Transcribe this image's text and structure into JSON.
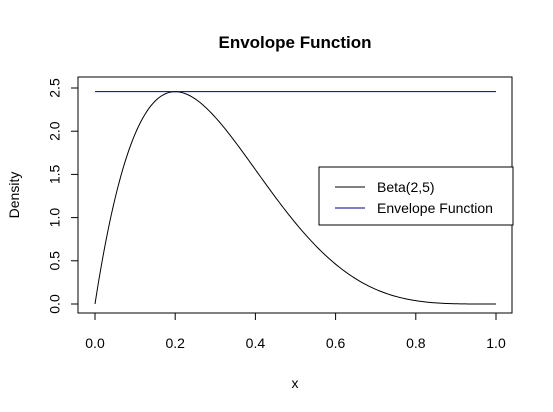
{
  "chart_data": {
    "type": "line",
    "title": "Envolope Function",
    "xlabel": "x",
    "ylabel": "Density",
    "xlim": [
      0,
      1
    ],
    "ylim": [
      0,
      2.5
    ],
    "x_ticks": [
      "0.0",
      "0.2",
      "0.4",
      "0.6",
      "0.8",
      "1.0"
    ],
    "y_ticks": [
      "0.0",
      "0.5",
      "1.0",
      "1.5",
      "2.0",
      "2.5"
    ],
    "grid": false,
    "legend_position": "right",
    "series": [
      {
        "name": "Beta(2,5)",
        "color": "#000000",
        "function": "beta_pdf",
        "shape1": 2,
        "shape2": 5
      },
      {
        "name": "Envelope Function",
        "color": "#000080",
        "function": "constant",
        "x": [
          0,
          1
        ],
        "y": [
          2.4576,
          2.4576
        ]
      }
    ]
  }
}
